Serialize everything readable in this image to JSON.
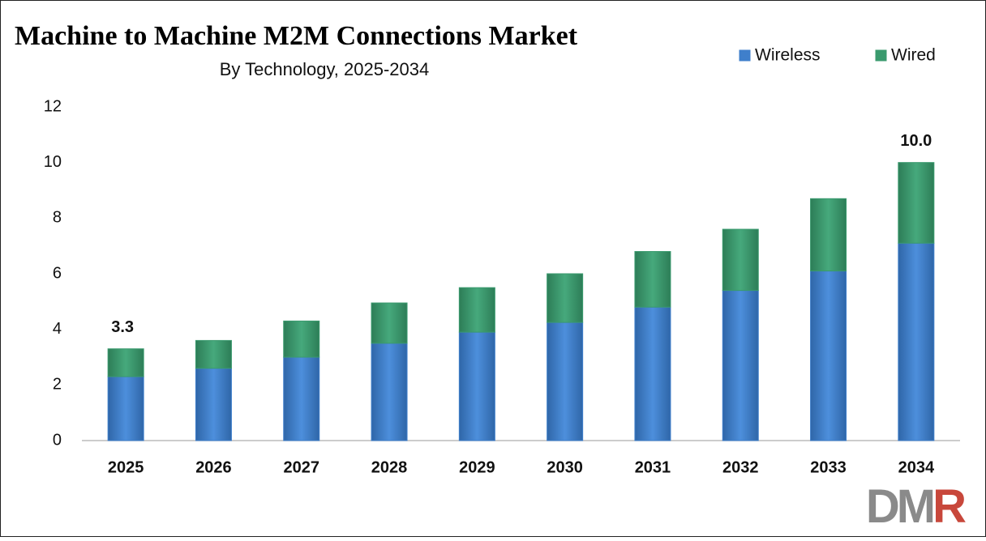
{
  "chart_data": {
    "type": "stacked_bar",
    "title": "Machine to Machine M2M Connections Market",
    "subtitle": "By Technology,  2025-2034",
    "categories": [
      "2025",
      "2026",
      "2027",
      "2028",
      "2029",
      "2030",
      "2031",
      "2032",
      "2033",
      "2034"
    ],
    "series": [
      {
        "name": "Wireless",
        "color": "#3f7fcb",
        "values": [
          2.3,
          2.6,
          3.0,
          3.5,
          3.9,
          4.25,
          4.8,
          5.4,
          6.1,
          7.1
        ]
      },
      {
        "name": "Wired",
        "color": "#3a9a6e",
        "values": [
          1.0,
          1.0,
          1.3,
          1.45,
          1.6,
          1.75,
          2.0,
          2.2,
          2.6,
          2.9
        ]
      }
    ],
    "total_labels": [
      {
        "category": "2025",
        "value": 3.3,
        "label": "3.3"
      },
      {
        "category": "2034",
        "value": 10,
        "label": "10.0"
      }
    ],
    "ylim": [
      0,
      12
    ],
    "yticks": [
      0,
      2,
      4,
      6,
      8,
      10,
      12
    ],
    "grid": false,
    "legend": "top-right",
    "logo": {
      "left": "DM",
      "right": "R"
    }
  }
}
